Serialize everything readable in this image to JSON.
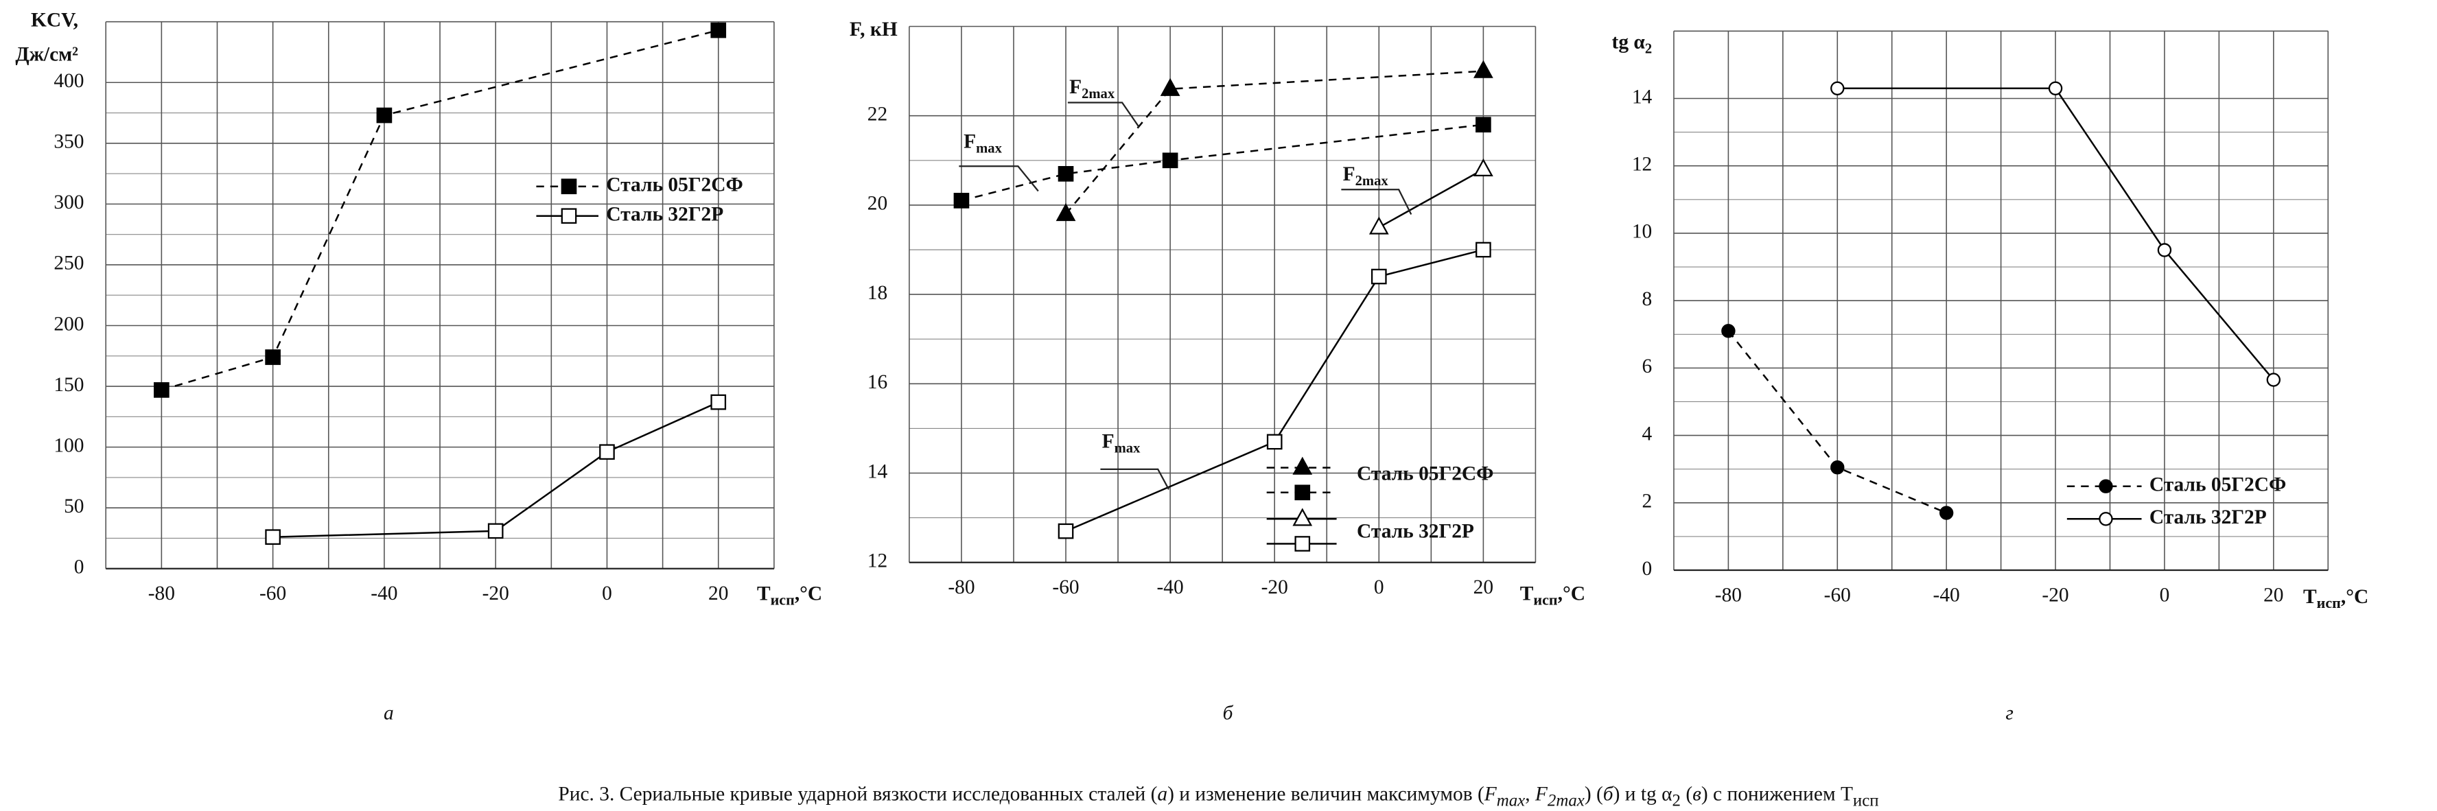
{
  "chart_data": [
    {
      "type": "line",
      "panel_label": "а",
      "y_label": [
        "KCV,",
        "Дж/см²"
      ],
      "x_label": {
        "text": "T",
        "sub": "исп",
        "suffix": ",°C"
      },
      "xlim": [
        -90,
        30
      ],
      "xticks": [
        -80,
        -60,
        -40,
        -20,
        0,
        20
      ],
      "ylim": [
        0,
        450
      ],
      "yticks": [
        0,
        50,
        100,
        150,
        200,
        250,
        300,
        350,
        400
      ],
      "grid": true,
      "series": [
        {
          "name": "Сталь 05Г2СФ",
          "color": "#000000",
          "marker": "square",
          "filled": true,
          "dashed": true,
          "x": [
            -80,
            -60,
            -40,
            20
          ],
          "values": [
            147,
            174,
            373,
            443
          ]
        },
        {
          "name": "Сталь 32Г2Р",
          "color": "#000000",
          "marker": "square",
          "filled": false,
          "dashed": false,
          "x": [
            -60,
            -20,
            0,
            20
          ],
          "values": [
            26,
            31,
            96,
            137
          ]
        }
      ]
    },
    {
      "type": "line",
      "panel_label": "б",
      "y_label": [
        "F, кН"
      ],
      "x_label": {
        "text": "T",
        "sub": "исп",
        "suffix": ",°C"
      },
      "xlim": [
        -90,
        30
      ],
      "xticks": [
        -80,
        -60,
        -40,
        -20,
        0,
        20
      ],
      "ylim": [
        12,
        24
      ],
      "yticks": [
        12,
        14,
        16,
        18,
        20,
        22
      ],
      "grid": true,
      "annotations": [
        {
          "text": "F",
          "sub": "max"
        },
        {
          "text": "F",
          "sub": "2max"
        },
        {
          "text": "F",
          "sub": "2max"
        },
        {
          "text": "F",
          "sub": "max"
        }
      ],
      "series": [
        {
          "name": "Сталь 05Г2СФ",
          "color": "#000000",
          "marker": "triangle",
          "filled": true,
          "dashed": true,
          "x": [
            -60,
            -40,
            20
          ],
          "values": [
            19.8,
            22.6,
            23.0
          ]
        },
        {
          "name": null,
          "color": "#000000",
          "marker": "square",
          "filled": true,
          "dashed": true,
          "x": [
            -80,
            -60,
            -40,
            20
          ],
          "values": [
            20.1,
            20.7,
            21.0,
            21.8
          ]
        },
        {
          "name": null,
          "color": "#000000",
          "marker": "triangle",
          "filled": false,
          "dashed": false,
          "x": [
            0,
            20
          ],
          "values": [
            19.5,
            20.8
          ]
        },
        {
          "name": "Сталь 32Г2Р",
          "color": "#000000",
          "marker": "square",
          "filled": false,
          "dashed": false,
          "x": [
            -60,
            -20,
            0,
            20
          ],
          "values": [
            12.7,
            14.7,
            18.4,
            19.0
          ]
        }
      ]
    },
    {
      "type": "line",
      "panel_label": "г",
      "y_label": [
        {
          "text": "tg α",
          "sub": "2"
        }
      ],
      "x_label": {
        "text": "T",
        "sub": "исп",
        "suffix": ",°C"
      },
      "xlim": [
        -90,
        30
      ],
      "xticks": [
        -80,
        -60,
        -40,
        -20,
        0,
        20
      ],
      "ylim": [
        0,
        16
      ],
      "yticks": [
        0,
        2,
        4,
        6,
        8,
        10,
        12,
        14
      ],
      "grid": true,
      "series": [
        {
          "name": "Сталь 05Г2СФ",
          "color": "#000000",
          "marker": "circle",
          "filled": true,
          "dashed": true,
          "x": [
            -80,
            -60,
            -40
          ],
          "values": [
            7.1,
            3.05,
            1.7
          ]
        },
        {
          "name": "Сталь 32Г2Р",
          "color": "#000000",
          "marker": "circle",
          "filled": false,
          "dashed": false,
          "x": [
            -60,
            -20,
            0,
            20
          ],
          "values": [
            14.3,
            14.3,
            9.5,
            5.65
          ]
        }
      ]
    }
  ],
  "caption": [
    {
      "text": "Рис. 3. Сериальные кривые ударной вязкости исследованных сталей ("
    },
    {
      "text": "а",
      "italic": true
    },
    {
      "text": ") и изменение величин максимумов ("
    },
    {
      "text": "F",
      "italic": true
    },
    {
      "text": "max",
      "sub": true,
      "italic": true
    },
    {
      "text": ", "
    },
    {
      "text": "F",
      "italic": true
    },
    {
      "text": "2max",
      "sub": true,
      "italic": true
    },
    {
      "text": ") ("
    },
    {
      "text": "б",
      "italic": true
    },
    {
      "text": ") и tg α"
    },
    {
      "text": "2",
      "sub": true
    },
    {
      "text": " ("
    },
    {
      "text": "в",
      "italic": true
    },
    {
      "text": ") с понижением T"
    },
    {
      "text": "исп",
      "sub": true
    }
  ]
}
